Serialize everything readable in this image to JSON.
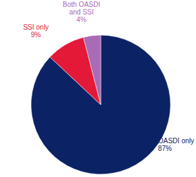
{
  "chart_data": {
    "type": "pie",
    "categories": [
      "OASDI only",
      "SSI only",
      "Both OASDI and SSI"
    ],
    "values": [
      87,
      9,
      4
    ],
    "value_labels": [
      "87%",
      "9%",
      "4%"
    ],
    "colors": [
      "#0b2265",
      "#e31937",
      "#a96bb5"
    ],
    "data_labels": true
  }
}
